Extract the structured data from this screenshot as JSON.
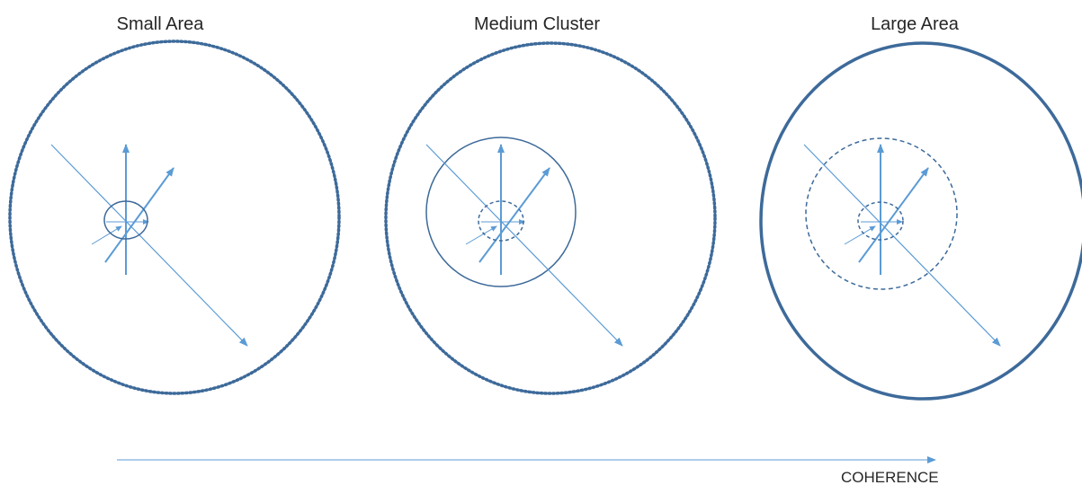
{
  "panels": [
    {
      "title": "Small Area",
      "outer_ring_style": "dotted",
      "middle_ring_style": "none",
      "inner_ring_style": "solid"
    },
    {
      "title": "Medium Cluster",
      "outer_ring_style": "dotted",
      "middle_ring_style": "solid",
      "inner_ring_style": "dashed"
    },
    {
      "title": "Large Area",
      "outer_ring_style": "solid-thick",
      "middle_ring_style": "dashed",
      "inner_ring_style": "dashed"
    }
  ],
  "axis": {
    "label": "COHERENCE"
  },
  "colors": {
    "ring": "#3d6a9a",
    "arrow": "#5b9bd5",
    "text": "#262626"
  }
}
